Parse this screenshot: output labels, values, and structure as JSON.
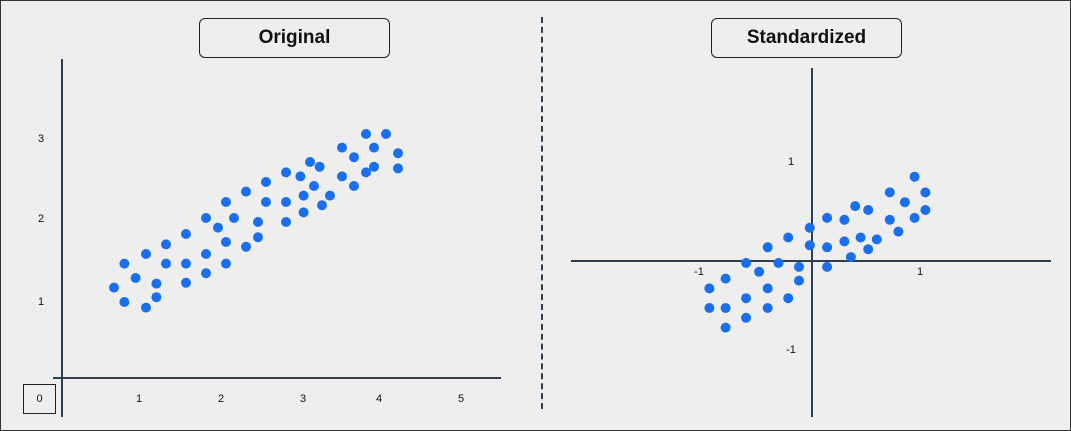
{
  "colors": {
    "point": "#1a6fef",
    "axis": "#2c3e50",
    "background": "#eeeeee"
  },
  "chart_data": [
    {
      "type": "scatter",
      "title": "Original",
      "xlabel": "",
      "ylabel": "",
      "xlim": [
        0,
        5.5
      ],
      "ylim": [
        0,
        3.8
      ],
      "x_ticks": [
        "1",
        "2",
        "3",
        "4",
        "5"
      ],
      "y_ticks": [
        "1",
        "2",
        "3"
      ],
      "origin_label": "0",
      "grid": false,
      "points": [
        [
          0.65,
          1.13
        ],
        [
          0.78,
          1.43
        ],
        [
          0.78,
          0.95
        ],
        [
          0.92,
          1.25
        ],
        [
          1.05,
          1.55
        ],
        [
          1.05,
          0.88
        ],
        [
          1.18,
          1.18
        ],
        [
          1.18,
          1.01
        ],
        [
          1.3,
          1.67
        ],
        [
          1.3,
          1.43
        ],
        [
          1.55,
          1.8
        ],
        [
          1.55,
          1.43
        ],
        [
          1.55,
          1.19
        ],
        [
          1.8,
          2.0
        ],
        [
          1.8,
          1.55
        ],
        [
          1.8,
          1.31
        ],
        [
          1.95,
          1.88
        ],
        [
          2.05,
          2.2
        ],
        [
          2.05,
          1.7
        ],
        [
          2.05,
          1.43
        ],
        [
          2.15,
          2.0
        ],
        [
          2.3,
          2.33
        ],
        [
          2.3,
          1.64
        ],
        [
          2.45,
          1.95
        ],
        [
          2.45,
          1.76
        ],
        [
          2.55,
          2.45
        ],
        [
          2.55,
          2.2
        ],
        [
          2.8,
          2.57
        ],
        [
          2.8,
          2.2
        ],
        [
          2.8,
          1.95
        ],
        [
          2.98,
          2.52
        ],
        [
          3.02,
          2.28
        ],
        [
          3.02,
          2.07
        ],
        [
          3.1,
          2.7
        ],
        [
          3.15,
          2.4
        ],
        [
          3.22,
          2.64
        ],
        [
          3.25,
          2.16
        ],
        [
          3.35,
          2.28
        ],
        [
          3.5,
          2.88
        ],
        [
          3.5,
          2.52
        ],
        [
          3.65,
          2.76
        ],
        [
          3.65,
          2.4
        ],
        [
          3.8,
          3.05
        ],
        [
          3.8,
          2.57
        ],
        [
          3.9,
          2.88
        ],
        [
          3.9,
          2.64
        ],
        [
          4.05,
          3.05
        ],
        [
          4.2,
          2.81
        ],
        [
          4.2,
          2.62
        ]
      ]
    },
    {
      "type": "scatter",
      "title": "Standardized",
      "xlabel": "",
      "ylabel": "",
      "xlim": [
        -1.2,
        2.3
      ],
      "ylim": [
        -1.8,
        1.6
      ],
      "x_ticks": [
        "-1",
        "1"
      ],
      "y_ticks": [
        "1",
        "-1"
      ],
      "grid": false,
      "points": [
        [
          -0.95,
          -0.28
        ],
        [
          -0.95,
          -0.48
        ],
        [
          -0.8,
          -0.18
        ],
        [
          -0.8,
          -0.48
        ],
        [
          -0.8,
          -0.68
        ],
        [
          -0.61,
          -0.02
        ],
        [
          -0.61,
          -0.38
        ],
        [
          -0.61,
          -0.58
        ],
        [
          -0.49,
          -0.11
        ],
        [
          -0.41,
          0.14
        ],
        [
          -0.41,
          -0.28
        ],
        [
          -0.41,
          -0.48
        ],
        [
          -0.31,
          -0.02
        ],
        [
          -0.22,
          0.24
        ],
        [
          -0.22,
          -0.38
        ],
        [
          -0.12,
          -0.06
        ],
        [
          -0.12,
          -0.2
        ],
        [
          -0.02,
          0.34
        ],
        [
          -0.02,
          0.16
        ],
        [
          0.14,
          0.44
        ],
        [
          0.14,
          0.14
        ],
        [
          0.14,
          -0.06
        ],
        [
          0.3,
          0.42
        ],
        [
          0.3,
          0.2
        ],
        [
          0.36,
          0.04
        ],
        [
          0.4,
          0.56
        ],
        [
          0.45,
          0.24
        ],
        [
          0.52,
          0.52
        ],
        [
          0.52,
          0.12
        ],
        [
          0.6,
          0.22
        ],
        [
          0.72,
          0.42
        ],
        [
          0.72,
          0.7
        ],
        [
          0.8,
          0.3
        ],
        [
          0.86,
          0.6
        ],
        [
          0.95,
          0.86
        ],
        [
          0.95,
          0.44
        ],
        [
          1.05,
          0.7
        ],
        [
          1.05,
          0.52
        ]
      ]
    }
  ]
}
